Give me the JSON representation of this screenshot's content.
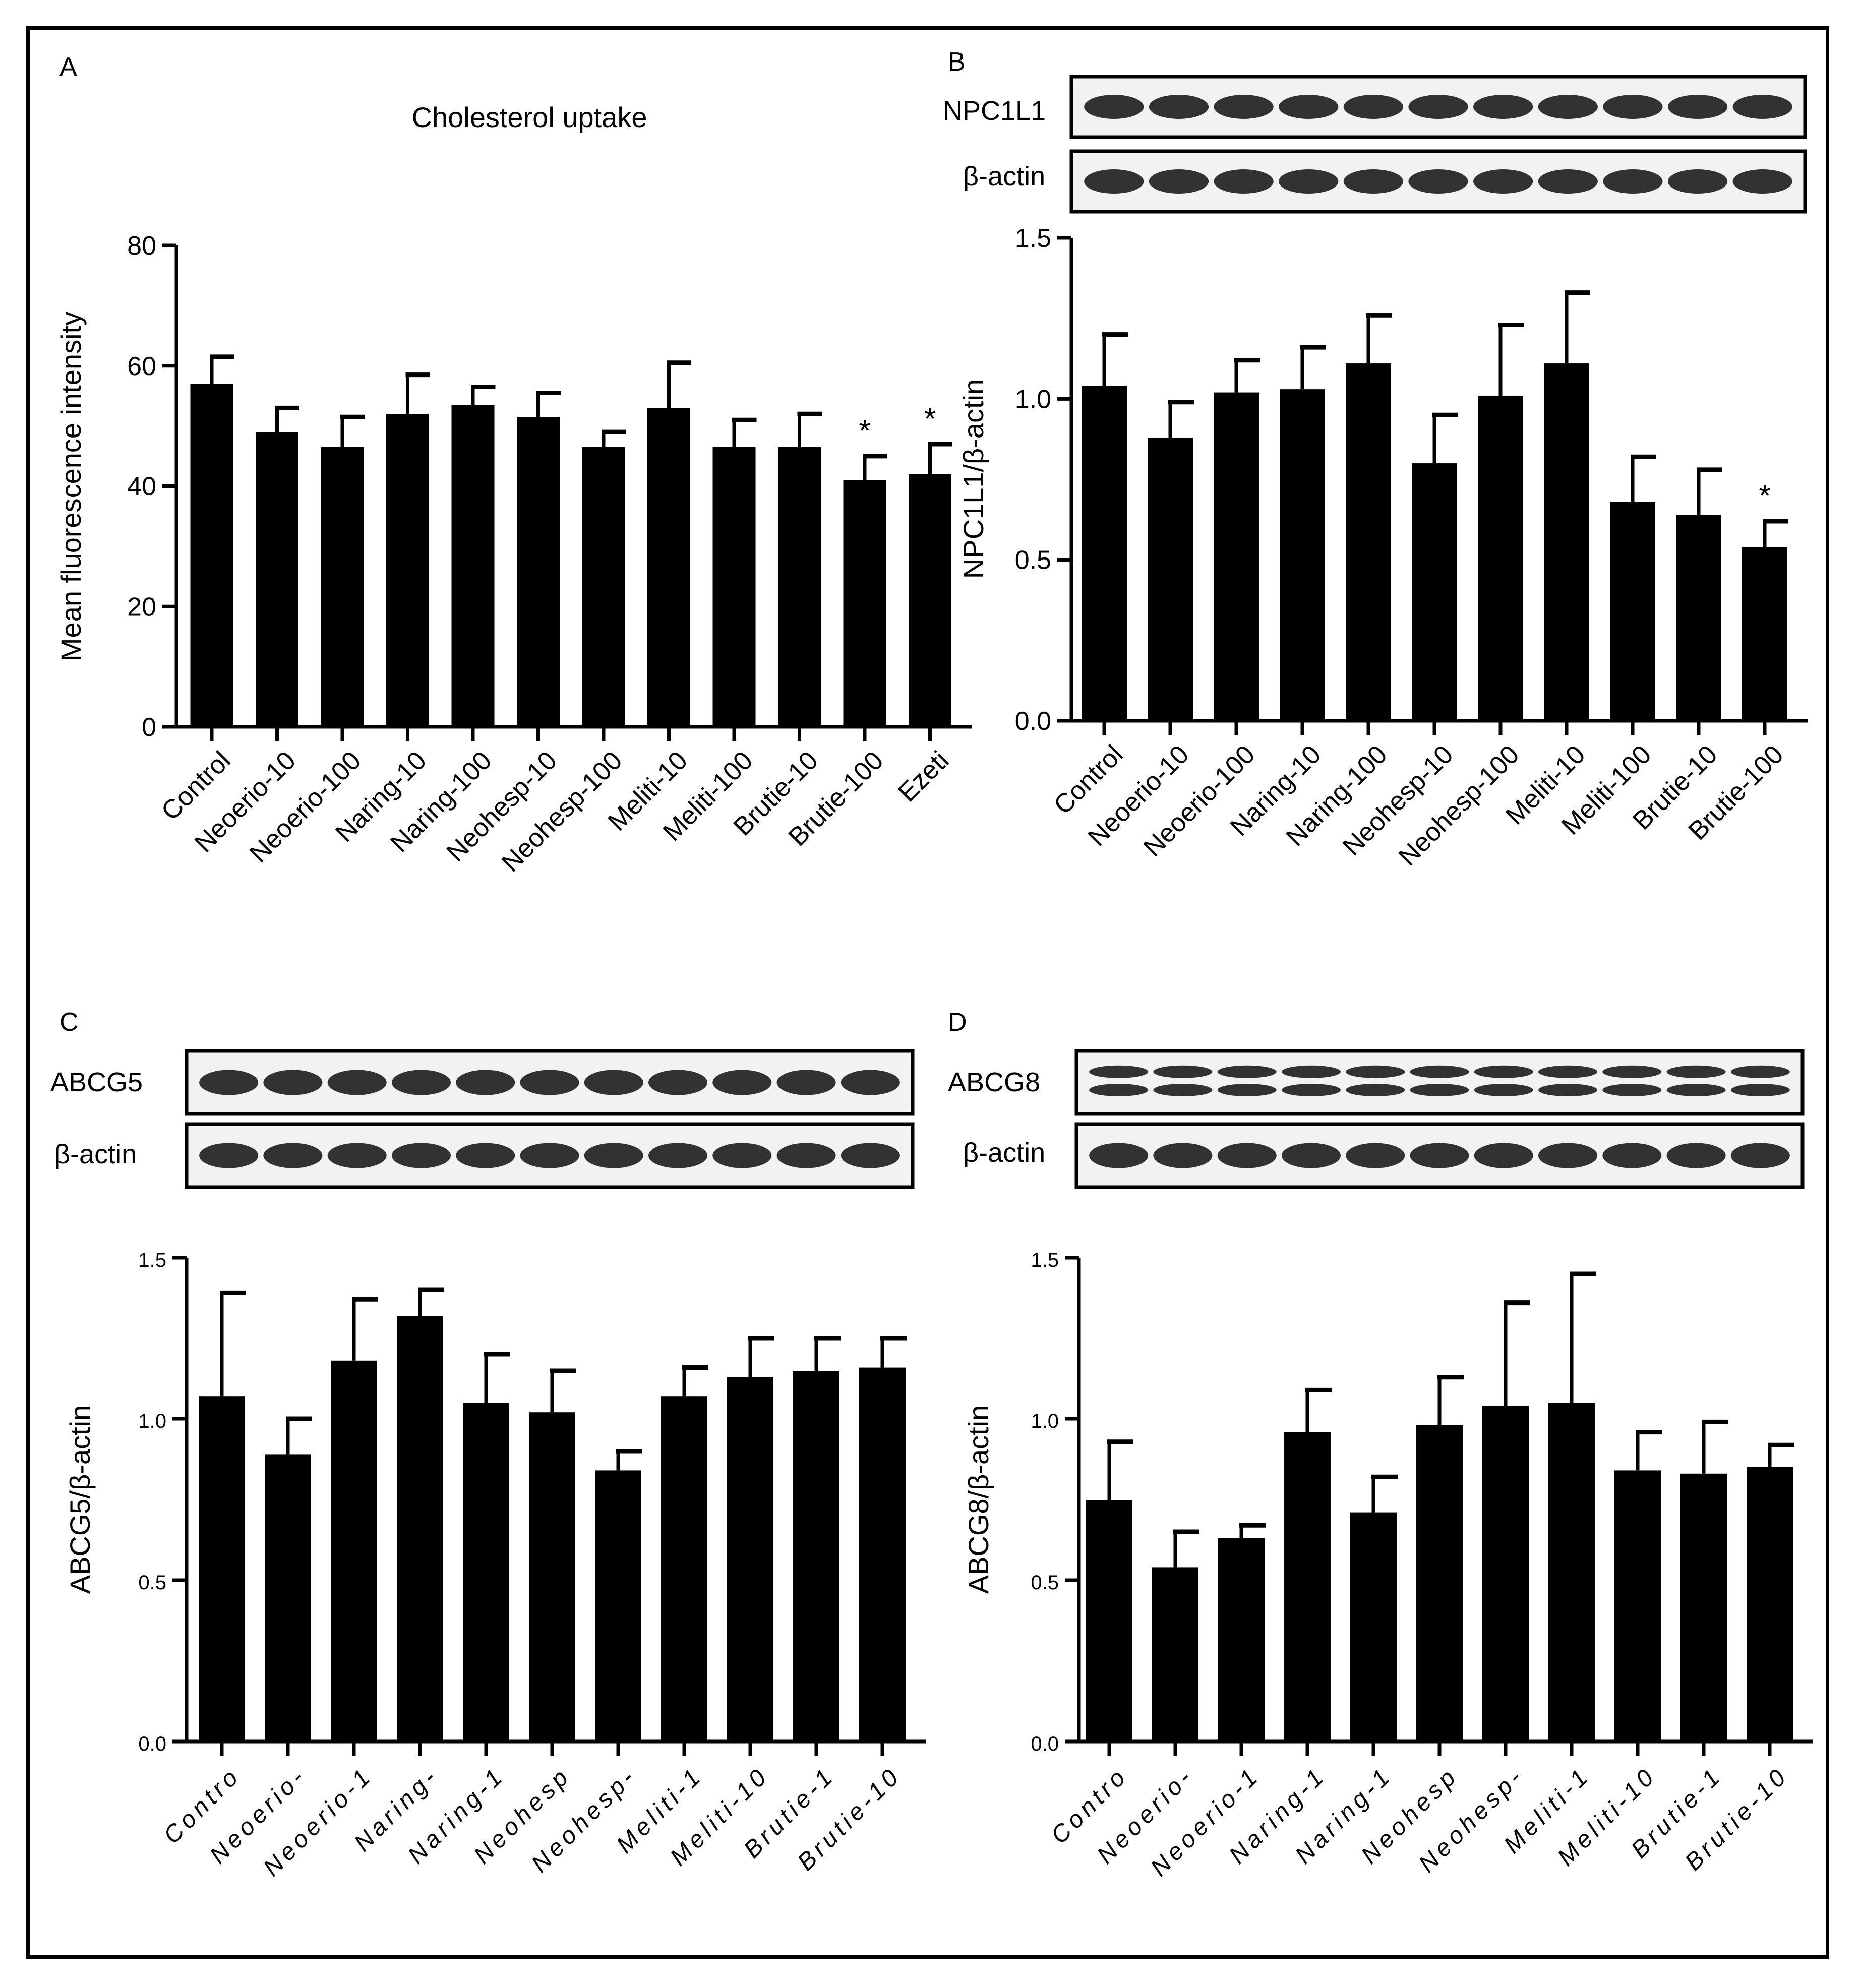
{
  "panels": [
    {
      "letter": "A",
      "title": "Cholesterol uptake",
      "blots": [],
      "chart_data": {
        "type": "bar",
        "title": "Cholesterol uptake",
        "ylabel": "Mean fluorescence intensity",
        "xlabel": "",
        "ylim": [
          0,
          80
        ],
        "yticks": [
          0,
          20,
          40,
          60,
          80
        ],
        "ytick_labels": [
          "0",
          "20",
          "40",
          "60",
          "80"
        ],
        "categories": [
          "Control",
          "Neoerio-10",
          "Neoerio-100",
          "Naring-10",
          "Naring-100",
          "Neohesp-10",
          "Neohesp-100",
          "Meliti-10",
          "Meliti-100",
          "Brutie-10",
          "Brutie-100",
          "Ezeti"
        ],
        "values": [
          57,
          49,
          46.5,
          52,
          53.5,
          51.5,
          46.5,
          53,
          46.5,
          46.5,
          41,
          42
        ],
        "errors": [
          4.5,
          4,
          5,
          6.5,
          3,
          4,
          2.5,
          7.5,
          4.5,
          5.5,
          4,
          5
        ],
        "significance": [
          "",
          "",
          "",
          "",
          "",
          "",
          "",
          "",
          "",
          "",
          "*",
          "*"
        ],
        "grid": false,
        "legend": "none"
      }
    },
    {
      "letter": "B",
      "title": "",
      "blots": [
        "NPC1L1",
        "β-actin"
      ],
      "chart_data": {
        "type": "bar",
        "title": "",
        "ylabel": "NPC1L1/β-actin",
        "xlabel": "",
        "ylim": [
          0,
          1.5
        ],
        "yticks": [
          0,
          0.5,
          1.0,
          1.5
        ],
        "ytick_labels": [
          "0.0",
          "0.5",
          "1.0",
          "1.5"
        ],
        "categories": [
          "Control",
          "Neoerio-10",
          "Neoerio-100",
          "Naring-10",
          "Naring-100",
          "Neohesp-10",
          "Neohesp-100",
          "Meliti-10",
          "Meliti-100",
          "Brutie-10",
          "Brutie-100"
        ],
        "values": [
          1.04,
          0.88,
          1.02,
          1.03,
          1.11,
          0.8,
          1.01,
          1.11,
          0.68,
          0.64,
          0.54
        ],
        "errors": [
          0.16,
          0.11,
          0.1,
          0.13,
          0.15,
          0.15,
          0.22,
          0.22,
          0.14,
          0.14,
          0.08
        ],
        "significance": [
          "",
          "",
          "",
          "",
          "",
          "",
          "",
          "",
          "",
          "",
          "*"
        ],
        "grid": false,
        "legend": "none"
      }
    },
    {
      "letter": "C",
      "title": "",
      "blots": [
        "ABCG5",
        "β-actin"
      ],
      "chart_data": {
        "type": "bar",
        "title": "",
        "ylabel": "ABCG5/β-actin",
        "xlabel": "",
        "ylim": [
          0,
          1.5
        ],
        "yticks": [
          0,
          0.5,
          1.0,
          1.5
        ],
        "ytick_labels": [
          "0.0",
          "0.5",
          "1.0",
          "1.5"
        ],
        "categories": [
          "Contro",
          "Neoerio-",
          "Neoerio-1",
          "Naring-",
          "Naring-1",
          "Neohesp",
          "Neohesp-",
          "Meliti-1",
          "Meliti-10",
          "Brutie-1",
          "Brutie-10"
        ],
        "values": [
          1.07,
          0.89,
          1.18,
          1.32,
          1.05,
          1.02,
          0.84,
          1.07,
          1.13,
          1.15,
          1.16
        ],
        "errors": [
          0.32,
          0.11,
          0.19,
          0.08,
          0.15,
          0.13,
          0.06,
          0.09,
          0.12,
          0.1,
          0.09
        ],
        "significance": [
          "",
          "",
          "",
          "",
          "",
          "",
          "",
          "",
          "",
          "",
          ""
        ],
        "grid": false,
        "legend": "none"
      }
    },
    {
      "letter": "D",
      "title": "",
      "blots": [
        "ABCG8",
        "β-actin"
      ],
      "chart_data": {
        "type": "bar",
        "title": "",
        "ylabel": "ABCG8/β-actin",
        "xlabel": "",
        "ylim": [
          0,
          1.5
        ],
        "yticks": [
          0,
          0.5,
          1.0,
          1.5
        ],
        "ytick_labels": [
          "0.0",
          "0.5",
          "1.0",
          "1.5"
        ],
        "categories": [
          "Contro",
          "Neoerio-",
          "Neoerio-1",
          "Naring-1",
          "Naring-1",
          "Neohesp",
          "Neohesp-",
          "Meliti-1",
          "Meliti-10",
          "Brutie-1",
          "Brutie-10"
        ],
        "values": [
          0.75,
          0.54,
          0.63,
          0.96,
          0.71,
          0.98,
          1.04,
          1.05,
          0.84,
          0.83,
          0.85
        ],
        "errors": [
          0.18,
          0.11,
          0.04,
          0.13,
          0.11,
          0.15,
          0.32,
          0.4,
          0.12,
          0.16,
          0.07
        ],
        "significance": [
          "",
          "",
          "",
          "",
          "",
          "",
          "",
          "",
          "",
          "",
          ""
        ],
        "grid": false,
        "legend": "none"
      }
    }
  ],
  "colors": {
    "bar": "#000000",
    "background": "#ffffff",
    "blot_bg": "#f2f2f2",
    "blot_band": "#111111"
  }
}
